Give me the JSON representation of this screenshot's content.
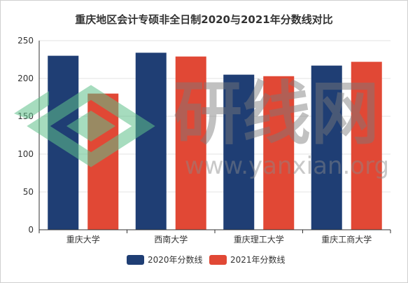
{
  "chart_data": {
    "type": "bar",
    "title": "重庆地区会计专硕非全日制2020与2021年分数线对比",
    "categories": [
      "重庆大学",
      "西南大学",
      "重庆理工大学",
      "重庆工商大学"
    ],
    "series": [
      {
        "name": "2020年分数线",
        "values": [
          230,
          234,
          205,
          217
        ],
        "color": "#1f3e74"
      },
      {
        "name": "2021年分数线",
        "values": [
          180,
          229,
          203,
          222
        ],
        "color": "#e14835"
      }
    ],
    "ylim": [
      0,
      250
    ],
    "yticks": [
      0,
      50,
      100,
      150,
      200,
      250
    ],
    "grid": true,
    "legend_position": "bottom-center"
  },
  "watermark": {
    "cn": "研线网",
    "url": "www.yanxian.org"
  }
}
